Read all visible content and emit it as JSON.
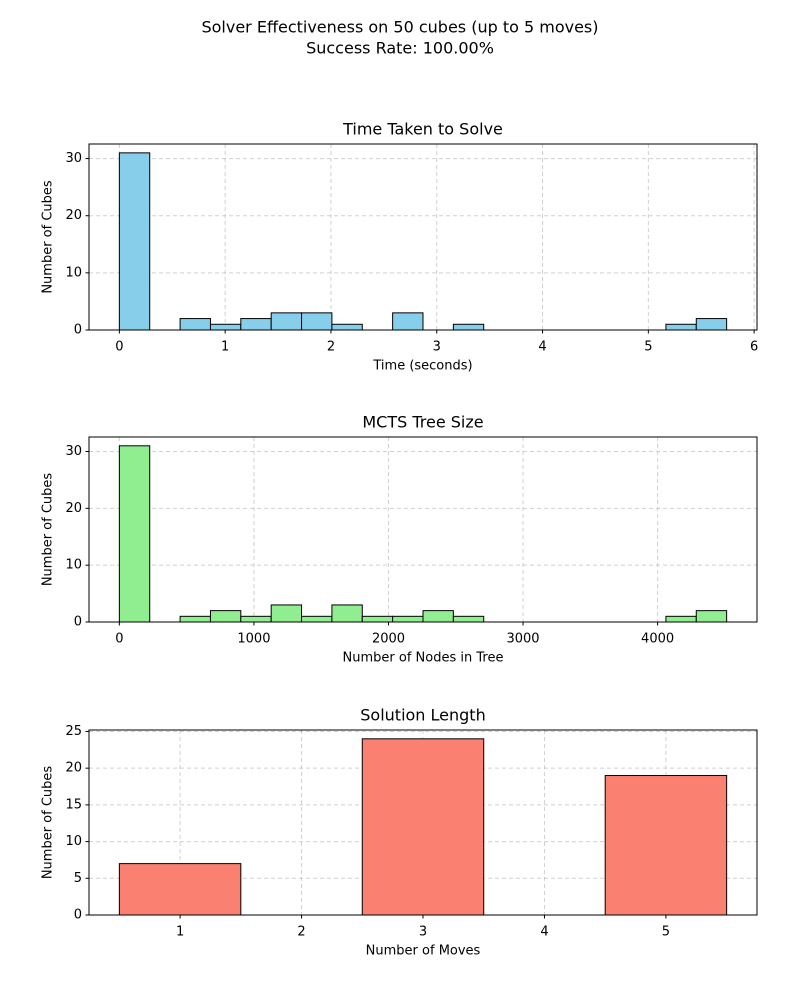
{
  "title": "Solver Effectiveness on 50 cubes (up to 5 moves)",
  "subtitle": "Success Rate: 100.00%",
  "chart_data": [
    {
      "type": "histogram",
      "title": "Time Taken to Solve",
      "xlabel": "Time (seconds)",
      "ylabel": "Number of Cubes",
      "bins": [
        0,
        0.287,
        0.574,
        0.861,
        1.148,
        1.435,
        1.722,
        2.009,
        2.296,
        2.583,
        2.87,
        3.157,
        3.444,
        3.731,
        4.018,
        4.305,
        4.592,
        4.879,
        5.166,
        5.453,
        5.74
      ],
      "values": [
        31,
        0,
        2,
        1,
        2,
        3,
        3,
        1,
        0,
        3,
        0,
        1,
        0,
        0,
        0,
        0,
        0,
        0,
        1,
        2
      ],
      "color": "#87ceeb",
      "xlim": [
        -0.287,
        6.027
      ],
      "ylim": [
        0,
        32.55
      ],
      "xticks": [
        0,
        1,
        2,
        3,
        4,
        5,
        6
      ],
      "yticks": [
        0,
        10,
        20,
        30
      ],
      "grid": true
    },
    {
      "type": "histogram",
      "title": "MCTS Tree Size",
      "xlabel": "Number of Nodes in Tree",
      "ylabel": "Number of Cubes",
      "bins": [
        0,
        225.65,
        451.3,
        676.95,
        902.6,
        1128.25,
        1353.9,
        1579.55,
        1805.2,
        2030.85,
        2256.5,
        2482.15,
        2707.8,
        2933.45,
        3159.1,
        3384.75,
        3610.4,
        3836.05,
        4061.7,
        4287.35,
        4513
      ],
      "values": [
        31,
        0,
        1,
        2,
        1,
        3,
        1,
        3,
        1,
        1,
        2,
        1,
        0,
        0,
        0,
        0,
        0,
        0,
        1,
        2
      ],
      "color": "#90ee90",
      "xlim": [
        -225.65,
        4738.65
      ],
      "ylim": [
        0,
        32.55
      ],
      "xticks": [
        0,
        1000,
        2000,
        3000,
        4000
      ],
      "yticks": [
        0,
        10,
        20,
        30
      ],
      "grid": true
    },
    {
      "type": "histogram",
      "title": "Solution Length",
      "xlabel": "Number of Moves",
      "ylabel": "Number of Cubes",
      "bins": [
        0.5,
        1.5,
        2.5,
        3.5,
        4.5,
        5.5
      ],
      "values": [
        7,
        0,
        24,
        0,
        19
      ],
      "color": "#fa8072",
      "xlim": [
        0.25,
        5.75
      ],
      "ylim": [
        0,
        25.2
      ],
      "xticks": [
        1,
        2,
        3,
        4,
        5
      ],
      "yticks": [
        0,
        5,
        10,
        15,
        20,
        25
      ],
      "grid": true
    }
  ]
}
